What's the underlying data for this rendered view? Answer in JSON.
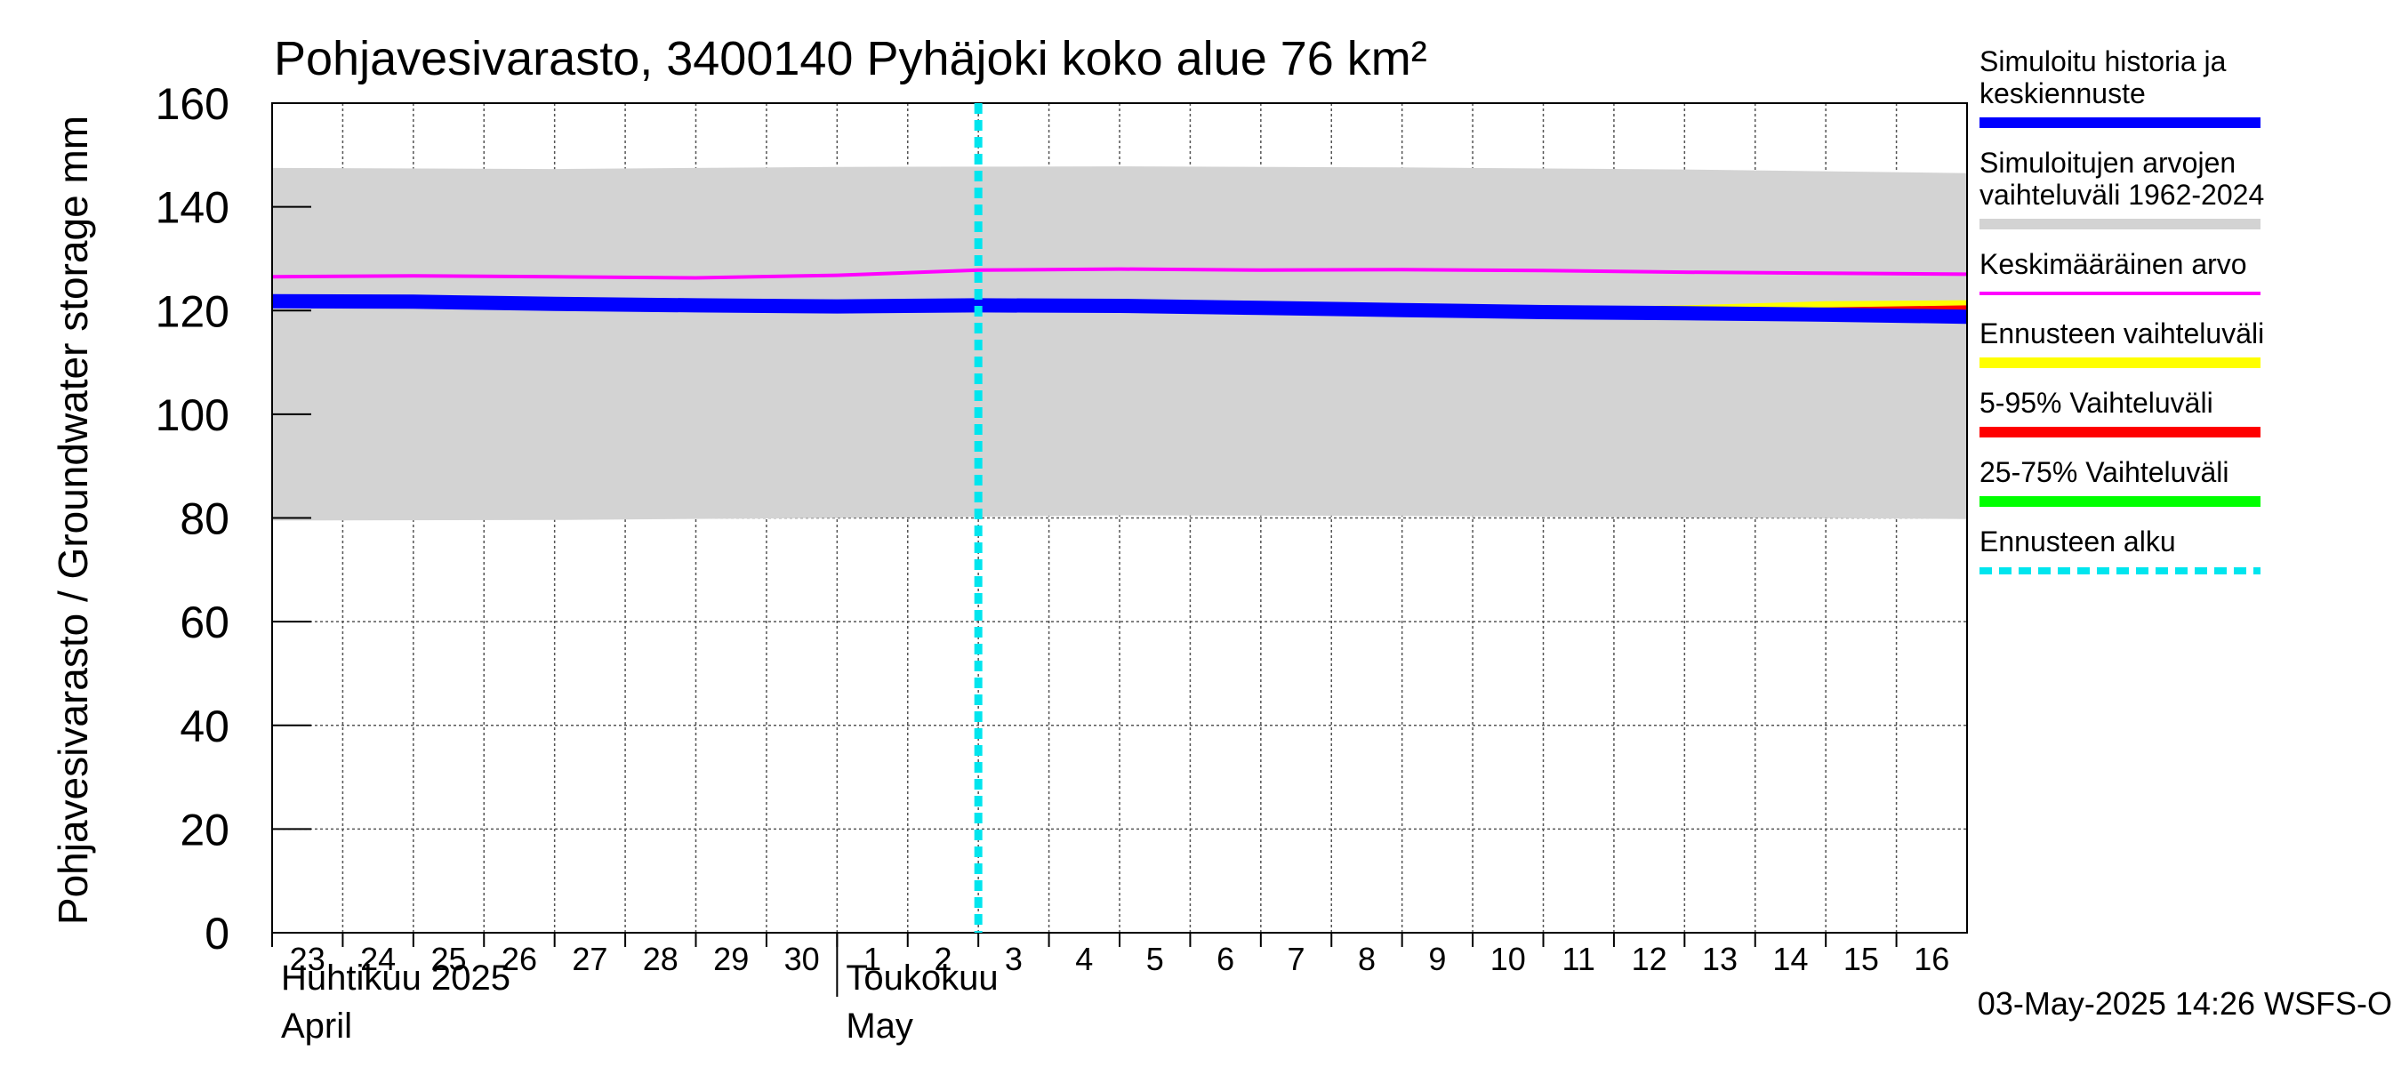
{
  "chart_data": {
    "type": "line",
    "title": "Pohjavesivarasto, 3400140 Pyhäjoki koko alue 76 km²",
    "ylabel": "Pohjavesivarasto / Groundwater storage   mm",
    "ylim": [
      0,
      160
    ],
    "yticks": [
      0,
      20,
      40,
      60,
      80,
      100,
      120,
      140,
      160
    ],
    "x_range": [
      "2025-04-23",
      "2025-05-17"
    ],
    "day_labels": [
      "23",
      "24",
      "25",
      "26",
      "27",
      "28",
      "29",
      "30",
      "1",
      "2",
      "3",
      "4",
      "5",
      "6",
      "7",
      "8",
      "9",
      "10",
      "11",
      "12",
      "13",
      "14",
      "15",
      "16"
    ],
    "month_labels": [
      {
        "fi": "Huhtikuu  2025",
        "en": "April",
        "date": "2025-04-23"
      },
      {
        "fi": "Toukokuu",
        "en": "May",
        "date": "2025-05-01"
      }
    ],
    "forecast_start": "2025-05-03",
    "footer": "03-May-2025 14:26 WSFS-O",
    "grid": true,
    "legend_position": "right",
    "legend": [
      {
        "label": "Simuloitu historia ja\nkeskiennuste",
        "color": "#0000ff",
        "style": "solid-thick"
      },
      {
        "label": "Simuloitujen arvojen\nvaihteluväli 1962-2024",
        "color": "#d3d3d3",
        "style": "solid-thick"
      },
      {
        "label": "Keskimääräinen arvo",
        "color": "#ff00ff",
        "style": "solid"
      },
      {
        "label": "Ennusteen vaihteluväli",
        "color": "#ffff00",
        "style": "solid-thick"
      },
      {
        "label": "5-95% Vaihteluväli",
        "color": "#ff0000",
        "style": "solid-thick"
      },
      {
        "label": "25-75% Vaihteluväli",
        "color": "#00ff00",
        "style": "solid-thick"
      },
      {
        "label": "Ennusteen alku",
        "color": "#00e5ee",
        "style": "dotted"
      }
    ],
    "series": [
      {
        "name": "Simuloitujen arvojen vaihteluväli 1962-2024",
        "kind": "band",
        "color": "#d3d3d3",
        "x": [
          "2025-04-23",
          "2025-04-27",
          "2025-05-01",
          "2025-05-05",
          "2025-05-09",
          "2025-05-13",
          "2025-05-17"
        ],
        "upper": [
          147.5,
          147.3,
          147.7,
          147.8,
          147.6,
          147.2,
          146.5
        ],
        "lower": [
          79.5,
          79.6,
          80.0,
          80.5,
          80.4,
          80.1,
          79.8
        ]
      },
      {
        "name": "Keskimääräinen arvo",
        "kind": "line",
        "color": "#ff00ff",
        "x": [
          "2025-04-23",
          "2025-04-25",
          "2025-04-27",
          "2025-04-29",
          "2025-05-01",
          "2025-05-03",
          "2025-05-05",
          "2025-05-07",
          "2025-05-09",
          "2025-05-11",
          "2025-05-13",
          "2025-05-15",
          "2025-05-17"
        ],
        "y": [
          126.5,
          126.7,
          126.5,
          126.3,
          126.8,
          127.8,
          128.0,
          127.8,
          127.9,
          127.7,
          127.4,
          127.2,
          127.0
        ]
      },
      {
        "name": "Ennusteen vaihteluväli",
        "kind": "band",
        "color": "#ffff00",
        "x": [
          "2025-05-03",
          "2025-05-07",
          "2025-05-11",
          "2025-05-13",
          "2025-05-15",
          "2025-05-17"
        ],
        "upper": [
          121.0,
          120.8,
          120.6,
          121.0,
          121.8,
          122.0
        ],
        "lower": [
          120.6,
          120.0,
          119.0,
          118.6,
          118.2,
          118.0
        ]
      },
      {
        "name": "5-95% Vaihteluväli",
        "kind": "band",
        "color": "#ff0000",
        "x": [
          "2025-05-03",
          "2025-05-07",
          "2025-05-11",
          "2025-05-13",
          "2025-05-15",
          "2025-05-17"
        ],
        "upper": [
          121.0,
          120.6,
          120.0,
          120.2,
          120.6,
          121.0
        ],
        "lower": [
          120.6,
          120.0,
          119.0,
          118.7,
          118.3,
          118.1
        ]
      },
      {
        "name": "25-75% Vaihteluväli",
        "kind": "band",
        "color": "#00ff00",
        "x": [
          "2025-05-03",
          "2025-05-07",
          "2025-05-11",
          "2025-05-13",
          "2025-05-15",
          "2025-05-17"
        ],
        "upper": [
          120.9,
          120.4,
          119.6,
          119.4,
          119.2,
          119.0
        ],
        "lower": [
          120.7,
          120.1,
          119.1,
          118.8,
          118.5,
          118.3
        ]
      },
      {
        "name": "Simuloitu historia ja keskiennuste",
        "kind": "line",
        "color": "#0000ff",
        "x": [
          "2025-04-23",
          "2025-04-25",
          "2025-04-27",
          "2025-04-29",
          "2025-05-01",
          "2025-05-03",
          "2025-05-05",
          "2025-05-07",
          "2025-05-09",
          "2025-05-11",
          "2025-05-13",
          "2025-05-15",
          "2025-05-17"
        ],
        "y": [
          121.8,
          121.7,
          121.3,
          121.0,
          120.8,
          121.0,
          120.9,
          120.5,
          120.1,
          119.7,
          119.5,
          119.2,
          118.8
        ]
      }
    ]
  }
}
